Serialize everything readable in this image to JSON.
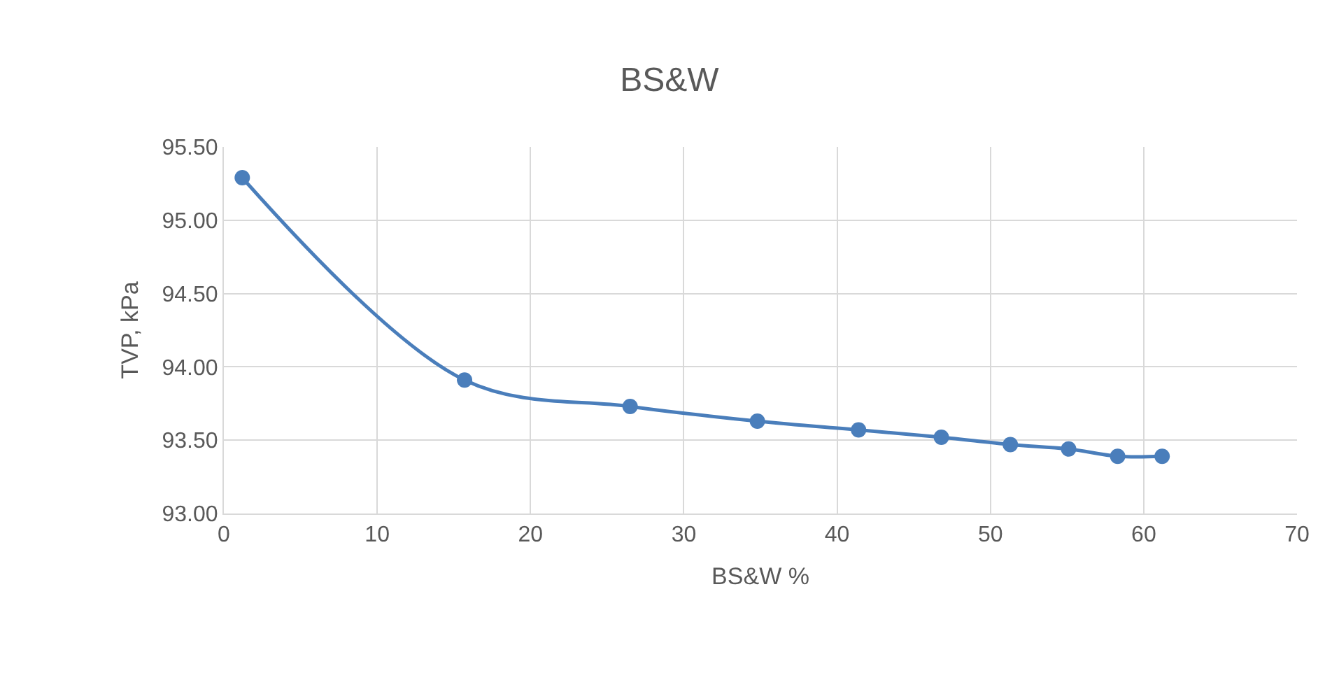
{
  "chart_data": {
    "type": "line",
    "title": "BS&W",
    "xlabel": "BS&W %",
    "ylabel": "TVP, kPa",
    "x": [
      1.2,
      15.7,
      26.5,
      34.8,
      41.4,
      46.8,
      51.3,
      55.1,
      58.3,
      61.2
    ],
    "series": [
      {
        "color": "#4a7ebb",
        "values": [
          95.29,
          93.91,
          93.73,
          93.63,
          93.57,
          93.52,
          93.47,
          93.44,
          93.39,
          93.39
        ]
      }
    ],
    "xlim": [
      0,
      70
    ],
    "xticks": [
      0,
      10,
      20,
      30,
      40,
      50,
      60,
      70
    ],
    "ylim": [
      93,
      95.5
    ],
    "yticks": [
      {
        "value": 93,
        "label": "93.00"
      },
      {
        "value": 93.5,
        "label": "93.50"
      },
      {
        "value": 94,
        "label": "94.00"
      },
      {
        "value": 94.5,
        "label": "94.50"
      },
      {
        "value": 95,
        "label": "95.00"
      },
      {
        "value": 95.5,
        "label": "95.50"
      }
    ],
    "grid": true,
    "marker": "circle",
    "line_style": "solid",
    "legend": false
  }
}
